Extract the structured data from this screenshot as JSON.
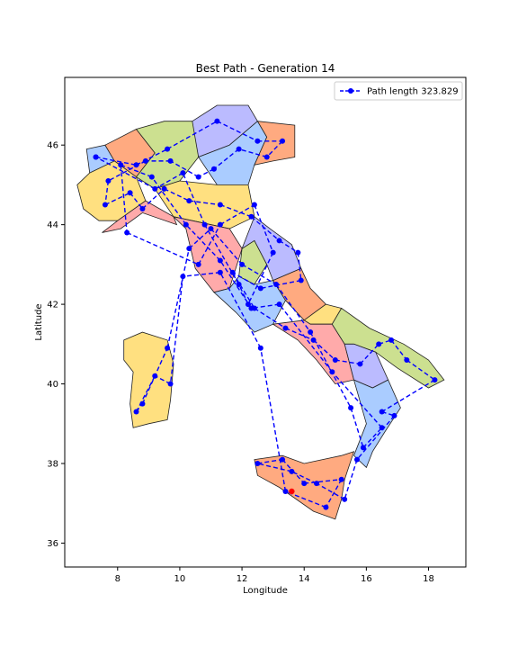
{
  "chart_data": {
    "type": "line",
    "title": "Best Path - Generation 14",
    "xlabel": "Longitude",
    "ylabel": "Latitude",
    "xlim": [
      6.3,
      19.2
    ],
    "ylim": [
      35.4,
      47.7
    ],
    "xticks": [
      8,
      10,
      12,
      14,
      16,
      18
    ],
    "yticks": [
      36,
      38,
      40,
      42,
      44,
      46
    ],
    "grid": false,
    "legend_position": "top-right",
    "series": [
      {
        "name": "Path length 323.829",
        "style": "dashed-with-markers",
        "color": "#0000ff",
        "x": [
          7.3,
          8.6,
          9.6,
          11.2,
          12.5,
          13.3,
          12.8,
          11.9,
          11.1,
          10.6,
          9.7,
          8.9,
          7.7,
          7.6,
          8.4,
          8.8,
          9.5,
          10.3,
          11.3,
          12.3,
          13.2,
          13.8,
          13.9,
          12.6,
          11.7,
          12.4,
          13.4,
          14.3,
          15.0,
          15.8,
          16.4,
          16.8,
          17.3,
          18.2,
          16.5,
          16.9,
          15.7,
          15.3,
          14.4,
          13.6,
          12.5,
          13.3,
          14.0,
          15.2,
          14.7,
          13.4,
          12.6,
          11.3,
          10.1,
          9.7,
          9.2,
          8.6,
          8.8,
          9.6,
          10.3,
          11.0,
          12.0,
          13.1,
          14.2,
          15.5,
          15.9,
          16.5,
          14.9,
          13.2,
          12.3,
          11.3,
          10.2,
          9.1,
          8.1,
          8.3,
          10.6,
          11.3,
          12.4,
          13.0,
          12.2,
          11.9,
          10.8,
          10.1,
          9.2,
          7.3
        ],
        "y": [
          45.7,
          45.5,
          45.9,
          46.6,
          46.1,
          46.1,
          45.7,
          45.9,
          45.4,
          45.2,
          45.6,
          45.6,
          45.1,
          44.5,
          44.8,
          44.4,
          44.9,
          44.6,
          44.5,
          44.2,
          43.6,
          43.3,
          42.6,
          42.4,
          42.8,
          41.9,
          41.4,
          41.1,
          40.6,
          40.5,
          41.0,
          41.1,
          40.6,
          40.1,
          39.3,
          39.2,
          38.1,
          37.1,
          37.5,
          37.8,
          38.0,
          38.1,
          37.5,
          37.6,
          36.9,
          37.3,
          40.9,
          42.8,
          42.7,
          40.0,
          40.2,
          39.3,
          39.5,
          40.9,
          43.4,
          43.9,
          43.0,
          42.5,
          41.3,
          39.4,
          38.4,
          38.9,
          40.3,
          42.0,
          41.9,
          43.1,
          44.0,
          45.2,
          45.5,
          43.8,
          43.0,
          44.0,
          44.5,
          43.3,
          42.0,
          42.5,
          44.0,
          45.3,
          44.9,
          45.7
        ]
      }
    ],
    "highlight_point": {
      "x": 13.6,
      "y": 37.3,
      "color": "#ff0000"
    },
    "region_colors": [
      "#aaccff",
      "#ffaa80",
      "#ffe080",
      "#ffaaaa",
      "#cce090",
      "#bbbbff"
    ]
  }
}
